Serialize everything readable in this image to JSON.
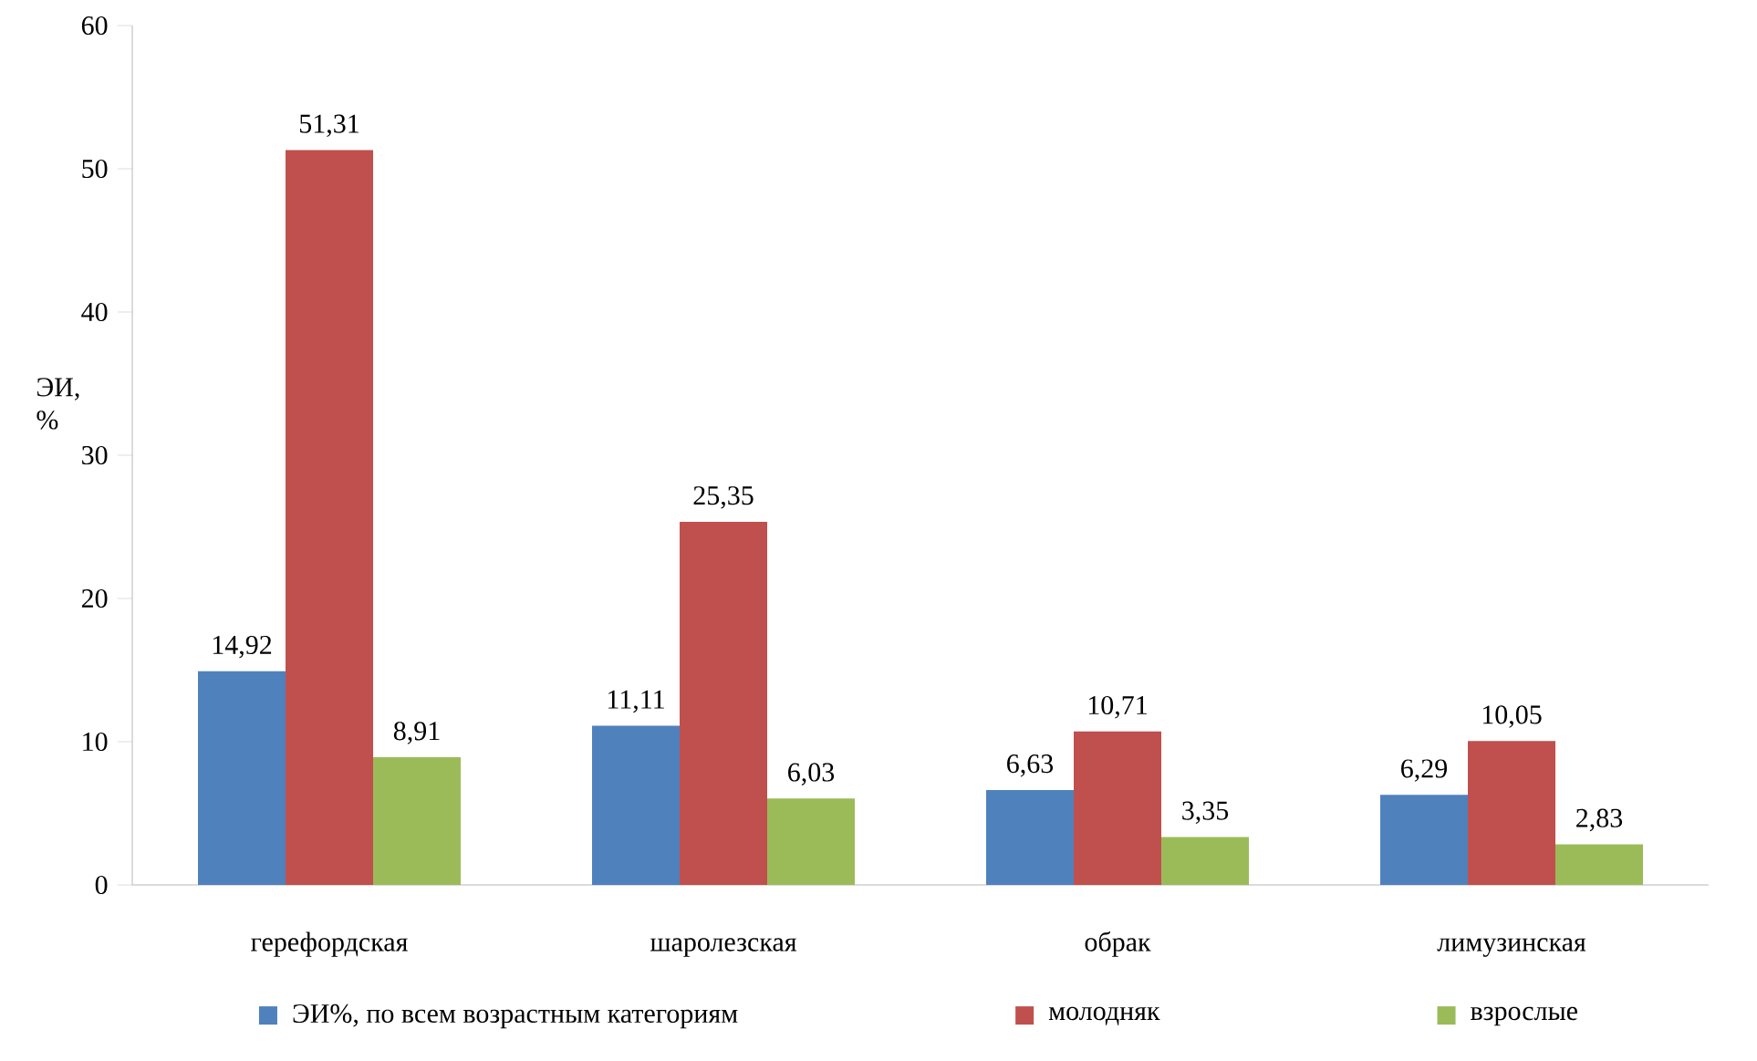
{
  "chart_data": {
    "type": "bar",
    "categories": [
      "герефордская",
      "шаролезская",
      "обрак",
      "лимузинская"
    ],
    "ylabel": "ЭИ, %",
    "ylim": [
      0,
      60
    ],
    "yticks": [
      0,
      10,
      20,
      30,
      40,
      50,
      60
    ],
    "grid": false,
    "legend": "bottom",
    "series": [
      {
        "name": "ЭИ%, по всем возрастным категориям",
        "color": "#4f81bd",
        "values": [
          14.92,
          11.11,
          6.63,
          6.29
        ],
        "value_labels": [
          "14,92",
          "11,11",
          "6,63",
          "6,29"
        ]
      },
      {
        "name": "молодняк",
        "color": "#c0504d",
        "values": [
          51.31,
          25.35,
          10.71,
          10.05
        ],
        "value_labels": [
          "51,31",
          "25,35",
          "10,71",
          "10,05"
        ]
      },
      {
        "name": "взрослые",
        "color": "#9bbb59",
        "values": [
          8.91,
          6.03,
          3.35,
          2.83
        ],
        "value_labels": [
          "8,91",
          "6,03",
          "3,35",
          "2,83"
        ]
      }
    ]
  }
}
